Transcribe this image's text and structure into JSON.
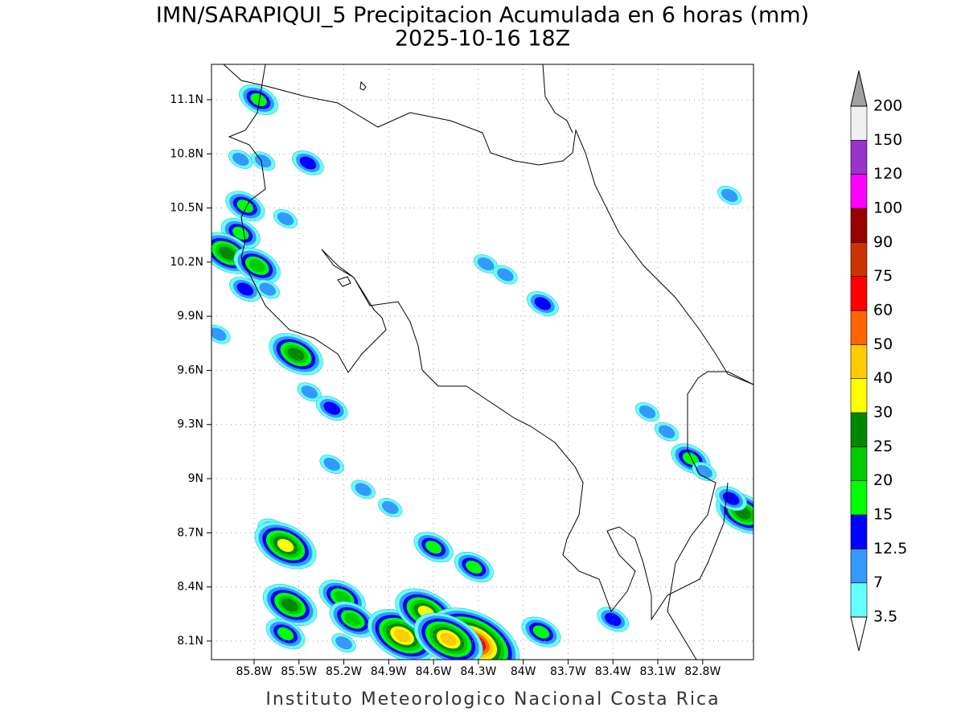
{
  "chart_data": {
    "type": "contour-map",
    "title": "IMN/SARAPIQUI_5 Precipitacion Acumulada en 6 horas (mm)",
    "subtitle": "2025-10-16 18Z",
    "footer": "Instituto Meteorologico Nacional Costa Rica",
    "xlim": [
      -86.085,
      -82.46
    ],
    "ylim": [
      7.997,
      11.296
    ],
    "xticks": [
      {
        "value": -85.8,
        "label": "85.8W"
      },
      {
        "value": -85.5,
        "label": "85.5W"
      },
      {
        "value": -85.2,
        "label": "85.2W"
      },
      {
        "value": -84.9,
        "label": "84.9W"
      },
      {
        "value": -84.6,
        "label": "84.6W"
      },
      {
        "value": -84.3,
        "label": "84.3W"
      },
      {
        "value": -84,
        "label": "84W"
      },
      {
        "value": -83.7,
        "label": "83.7W"
      },
      {
        "value": -83.4,
        "label": "83.4W"
      },
      {
        "value": -83.1,
        "label": "83.1W"
      },
      {
        "value": -82.8,
        "label": "82.8W"
      }
    ],
    "yticks": [
      {
        "value": 11.1,
        "label": "11.1N"
      },
      {
        "value": 10.8,
        "label": "10.8N"
      },
      {
        "value": 10.5,
        "label": "10.5N"
      },
      {
        "value": 10.2,
        "label": "10.2N"
      },
      {
        "value": 9.9,
        "label": "9.9N"
      },
      {
        "value": 9.6,
        "label": "9.6N"
      },
      {
        "value": 9.3,
        "label": "9.3N"
      },
      {
        "value": 9,
        "label": "9N"
      },
      {
        "value": 8.7,
        "label": "8.7N"
      },
      {
        "value": 8.4,
        "label": "8.4N"
      },
      {
        "value": 8.1,
        "label": "8.1N"
      }
    ],
    "grid": true,
    "levels": [
      3.5,
      7,
      12.5,
      15,
      20,
      25,
      30,
      40,
      50,
      60,
      75,
      90,
      100,
      120,
      150,
      200
    ],
    "colors": [
      "#66ffff",
      "#3399ff",
      "#0000ff",
      "#00ff00",
      "#00cc00",
      "#008800",
      "#ffff00",
      "#ffcc00",
      "#ff6600",
      "#ff0000",
      "#cc3300",
      "#990000",
      "#ff00ff",
      "#9933cc",
      "#f0f0f0"
    ],
    "over_color": "#a0a0a0",
    "under_color": "#ffffff",
    "cells": {
      "lon": [
        -85.77,
        -85.89,
        -85.74,
        -85.44,
        -85.86,
        -85.59,
        -85.89,
        -85.98,
        -85.78,
        -85.86,
        -85.71,
        -86.04,
        -85.52,
        -85.43,
        -85.28,
        -85.28,
        -85.07,
        -84.89,
        -85.67,
        -85.59,
        -84.6,
        -84.33,
        -85.56,
        -85.59,
        -85.21,
        -85.14,
        -84.81,
        -84.65,
        -84.33,
        -84.5,
        -83.87,
        -84.25,
        -84.12,
        -82.62,
        -82.88,
        -82.79,
        -82.53,
        -82.61,
        -83.4,
        -83.88,
        -85.2,
        -83.17,
        -83.04
      ],
      "lat": [
        11.1,
        10.77,
        10.76,
        10.75,
        10.51,
        10.44,
        10.36,
        10.25,
        10.18,
        10.05,
        10.05,
        9.8,
        9.69,
        9.48,
        9.39,
        9.08,
        8.94,
        8.84,
        8.71,
        8.63,
        8.62,
        8.51,
        8.3,
        8.14,
        8.34,
        8.22,
        8.13,
        8.26,
        8.09,
        8.11,
        9.97,
        10.19,
        10.13,
        10.57,
        9.11,
        9.04,
        8.81,
        8.89,
        8.22,
        8.15,
        8.09,
        9.37,
        9.26
      ],
      "values": [
        15,
        7,
        7,
        12.5,
        15,
        7,
        15,
        25,
        20,
        12.5,
        7,
        7,
        25,
        7,
        12.5,
        7,
        7,
        7,
        12.5,
        30,
        15,
        15,
        25,
        15,
        20,
        20,
        40,
        30,
        75,
        40,
        12.5,
        7,
        7,
        7,
        15,
        7,
        25,
        12.5,
        12.5,
        15,
        7,
        7,
        7
      ]
    }
  }
}
